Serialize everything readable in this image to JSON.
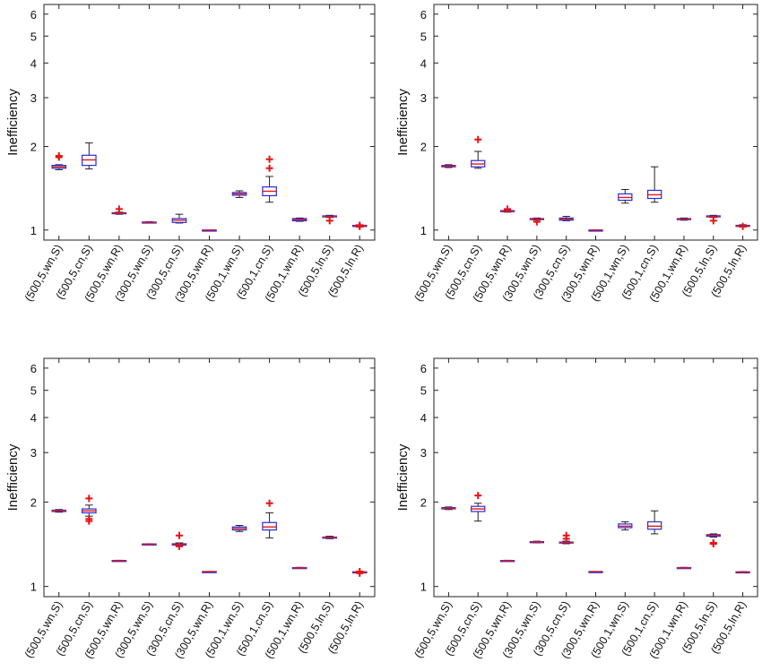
{
  "colors": {
    "box": "#2b2bd6",
    "median": "#e01818",
    "whisker": "#222222",
    "outlier": "#ee1111",
    "axis": "#222222"
  },
  "chart_data": [
    {
      "type": "box",
      "ylabel": "Inefficiency",
      "yscale": "log",
      "ylim": [
        0.92,
        6.5
      ],
      "yticks": [
        1,
        2,
        3,
        4,
        5,
        6
      ],
      "categories": [
        "(500,5,wn,S)",
        "(500,5,cn,S)",
        "(500,5,wn,R)",
        "(300,5,wn,S)",
        "(300,5,cn,S)",
        "(300,5,wn,R)",
        "(500,1,wn,S)",
        "(500,1,cn,S)",
        "(500,1,wn,R)",
        "(500,5,ln,S)",
        "(500,5,ln,R)"
      ],
      "boxes": [
        {
          "min": 1.65,
          "q1": 1.67,
          "median": 1.69,
          "q3": 1.71,
          "max": 1.72,
          "outliers": [
            1.83,
            1.85
          ]
        },
        {
          "min": 1.66,
          "q1": 1.71,
          "median": 1.79,
          "q3": 1.86,
          "max": 2.06,
          "outliers": []
        },
        {
          "min": 1.14,
          "q1": 1.145,
          "median": 1.15,
          "q3": 1.155,
          "max": 1.16,
          "outliers": [
            1.19
          ]
        },
        {
          "min": 1.06,
          "q1": 1.063,
          "median": 1.066,
          "q3": 1.069,
          "max": 1.072,
          "outliers": []
        },
        {
          "min": 1.06,
          "q1": 1.065,
          "median": 1.085,
          "q3": 1.1,
          "max": 1.14,
          "outliers": []
        },
        {
          "min": 1.0,
          "q1": 1.0,
          "median": 1.0,
          "q3": 1.0,
          "max": 1.0,
          "outliers": []
        },
        {
          "min": 1.31,
          "q1": 1.335,
          "median": 1.35,
          "q3": 1.365,
          "max": 1.385,
          "outliers": []
        },
        {
          "min": 1.26,
          "q1": 1.33,
          "median": 1.38,
          "q3": 1.43,
          "max": 1.56,
          "outliers": [
            1.67,
            1.8
          ]
        },
        {
          "min": 1.075,
          "q1": 1.08,
          "median": 1.09,
          "q3": 1.1,
          "max": 1.105,
          "outliers": []
        },
        {
          "min": 1.11,
          "q1": 1.115,
          "median": 1.12,
          "q3": 1.125,
          "max": 1.13,
          "outliers": [
            1.08
          ]
        },
        {
          "min": 1.025,
          "q1": 1.03,
          "median": 1.035,
          "q3": 1.04,
          "max": 1.045,
          "outliers": [
            1.03,
            1.04
          ]
        }
      ]
    },
    {
      "type": "box",
      "ylabel": "Inefficiency",
      "yscale": "log",
      "ylim": [
        0.92,
        6.5
      ],
      "yticks": [
        1,
        2,
        3,
        4,
        5,
        6
      ],
      "categories": [
        "(500,5,wn,S)",
        "(500,5,cn,S)",
        "(500,5,wn,R)",
        "(300,5,wn,S)",
        "(300,5,cn,S)",
        "(300,5,wn,R)",
        "(500,1,wn,S)",
        "(500,1,cn,S)",
        "(500,1,wn,R)",
        "(500,5,ln,S)",
        "(500,5,ln,R)"
      ],
      "boxes": [
        {
          "min": 1.68,
          "q1": 1.69,
          "median": 1.7,
          "q3": 1.71,
          "max": 1.72,
          "outliers": []
        },
        {
          "min": 1.67,
          "q1": 1.69,
          "median": 1.73,
          "q3": 1.78,
          "max": 1.92,
          "outliers": [
            2.12
          ]
        },
        {
          "min": 1.16,
          "q1": 1.165,
          "median": 1.17,
          "q3": 1.175,
          "max": 1.18,
          "outliers": [
            1.19
          ]
        },
        {
          "min": 1.085,
          "q1": 1.09,
          "median": 1.095,
          "q3": 1.1,
          "max": 1.105,
          "outliers": [
            1.07
          ]
        },
        {
          "min": 1.08,
          "q1": 1.085,
          "median": 1.095,
          "q3": 1.105,
          "max": 1.12,
          "outliers": []
        },
        {
          "min": 1.0,
          "q1": 1.0,
          "median": 1.0,
          "q3": 1.0,
          "max": 1.0,
          "outliers": []
        },
        {
          "min": 1.25,
          "q1": 1.28,
          "median": 1.31,
          "q3": 1.35,
          "max": 1.4,
          "outliers": []
        },
        {
          "min": 1.26,
          "q1": 1.3,
          "median": 1.34,
          "q3": 1.39,
          "max": 1.69,
          "outliers": []
        },
        {
          "min": 1.085,
          "q1": 1.09,
          "median": 1.095,
          "q3": 1.1,
          "max": 1.105,
          "outliers": []
        },
        {
          "min": 1.11,
          "q1": 1.115,
          "median": 1.12,
          "q3": 1.125,
          "max": 1.13,
          "outliers": [
            1.08
          ]
        },
        {
          "min": 1.025,
          "q1": 1.03,
          "median": 1.035,
          "q3": 1.04,
          "max": 1.045,
          "outliers": [
            1.03
          ]
        }
      ]
    },
    {
      "type": "box",
      "ylabel": "Inefficiency",
      "yscale": "log",
      "ylim": [
        0.92,
        6.5
      ],
      "yticks": [
        1,
        2,
        3,
        4,
        5,
        6
      ],
      "categories": [
        "(500,5,wn,S)",
        "(500,5,cn,S)",
        "(500,5,wn,R)",
        "(300,5,wn,S)",
        "(300,5,cn,S)",
        "(300,5,wn,R)",
        "(500,1,wn,S)",
        "(500,1,cn,S)",
        "(500,1,wn,R)",
        "(500,5,ln,S)",
        "(500,5,ln,R)"
      ],
      "boxes": [
        {
          "min": 1.84,
          "q1": 1.85,
          "median": 1.86,
          "q3": 1.87,
          "max": 1.88,
          "outliers": []
        },
        {
          "min": 1.78,
          "q1": 1.83,
          "median": 1.86,
          "q3": 1.89,
          "max": 1.95,
          "outliers": [
            2.06,
            1.74,
            1.71
          ]
        },
        {
          "min": 1.23,
          "q1": 1.232,
          "median": 1.235,
          "q3": 1.238,
          "max": 1.24,
          "outliers": []
        },
        {
          "min": 1.41,
          "q1": 1.412,
          "median": 1.415,
          "q3": 1.418,
          "max": 1.42,
          "outliers": []
        },
        {
          "min": 1.39,
          "q1": 1.405,
          "median": 1.415,
          "q3": 1.42,
          "max": 1.43,
          "outliers": [
            1.52,
            1.39
          ]
        },
        {
          "min": 1.13,
          "q1": 1.13,
          "median": 1.13,
          "q3": 1.13,
          "max": 1.13,
          "outliers": []
        },
        {
          "min": 1.57,
          "q1": 1.59,
          "median": 1.61,
          "q3": 1.63,
          "max": 1.65,
          "outliers": []
        },
        {
          "min": 1.49,
          "q1": 1.59,
          "median": 1.63,
          "q3": 1.69,
          "max": 1.83,
          "outliers": [
            1.98
          ]
        },
        {
          "min": 1.16,
          "q1": 1.163,
          "median": 1.165,
          "q3": 1.168,
          "max": 1.17,
          "outliers": []
        },
        {
          "min": 1.48,
          "q1": 1.49,
          "median": 1.495,
          "q3": 1.5,
          "max": 1.51,
          "outliers": []
        },
        {
          "min": 1.12,
          "q1": 1.123,
          "median": 1.125,
          "q3": 1.128,
          "max": 1.13,
          "outliers": [
            1.115,
            1.13
          ]
        }
      ]
    },
    {
      "type": "box",
      "ylabel": "Inefficiency",
      "yscale": "log",
      "ylim": [
        0.92,
        6.5
      ],
      "yticks": [
        1,
        2,
        3,
        4,
        5,
        6
      ],
      "categories": [
        "(500,5,wn,S)",
        "(500,5,cn,S)",
        "(500,5,wn,R)",
        "(300,5,wn,S)",
        "(300,5,cn,S)",
        "(300,5,wn,R)",
        "(500,1,wn,S)",
        "(500,1,cn,S)",
        "(500,1,wn,R)",
        "(500,5,ln,S)",
        "(500,5,ln,R)"
      ],
      "boxes": [
        {
          "min": 1.88,
          "q1": 1.89,
          "median": 1.9,
          "q3": 1.91,
          "max": 1.92,
          "outliers": []
        },
        {
          "min": 1.71,
          "q1": 1.85,
          "median": 1.89,
          "q3": 1.93,
          "max": 1.98,
          "outliers": [
            2.11
          ]
        },
        {
          "min": 1.23,
          "q1": 1.232,
          "median": 1.235,
          "q3": 1.238,
          "max": 1.24,
          "outliers": []
        },
        {
          "min": 1.43,
          "q1": 1.435,
          "median": 1.44,
          "q3": 1.445,
          "max": 1.45,
          "outliers": []
        },
        {
          "min": 1.42,
          "q1": 1.43,
          "median": 1.435,
          "q3": 1.44,
          "max": 1.45,
          "outliers": [
            1.52,
            1.48
          ]
        },
        {
          "min": 1.13,
          "q1": 1.13,
          "median": 1.13,
          "q3": 1.13,
          "max": 1.13,
          "outliers": []
        },
        {
          "min": 1.59,
          "q1": 1.62,
          "median": 1.64,
          "q3": 1.67,
          "max": 1.7,
          "outliers": []
        },
        {
          "min": 1.54,
          "q1": 1.6,
          "median": 1.64,
          "q3": 1.7,
          "max": 1.86,
          "outliers": []
        },
        {
          "min": 1.16,
          "q1": 1.163,
          "median": 1.165,
          "q3": 1.168,
          "max": 1.17,
          "outliers": []
        },
        {
          "min": 1.5,
          "q1": 1.51,
          "median": 1.52,
          "q3": 1.53,
          "max": 1.54,
          "outliers": [
            1.42,
            1.43
          ]
        },
        {
          "min": 1.12,
          "q1": 1.122,
          "median": 1.125,
          "q3": 1.128,
          "max": 1.13,
          "outliers": []
        }
      ]
    }
  ]
}
